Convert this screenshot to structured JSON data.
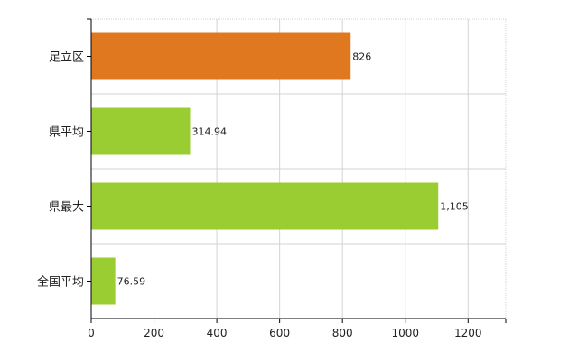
{
  "chart_data": {
    "type": "bar",
    "orientation": "horizontal",
    "categories": [
      "足立区",
      "県平均",
      "県最大",
      "全国平均"
    ],
    "values": [
      826,
      314.94,
      1105,
      76.59
    ],
    "data_labels": [
      "826",
      "314.94",
      "1,105",
      "76.59"
    ],
    "bar_colors": [
      "#E07820",
      "#9ACD32",
      "#9ACD32",
      "#9ACD32"
    ],
    "xlim": [
      0,
      1320
    ],
    "x_ticks": [
      0,
      200,
      400,
      600,
      800,
      1000,
      1200
    ],
    "x_tick_labels": [
      "0",
      "200",
      "400",
      "600",
      "800",
      "1000",
      "1200"
    ],
    "grid": true,
    "legend": false
  }
}
